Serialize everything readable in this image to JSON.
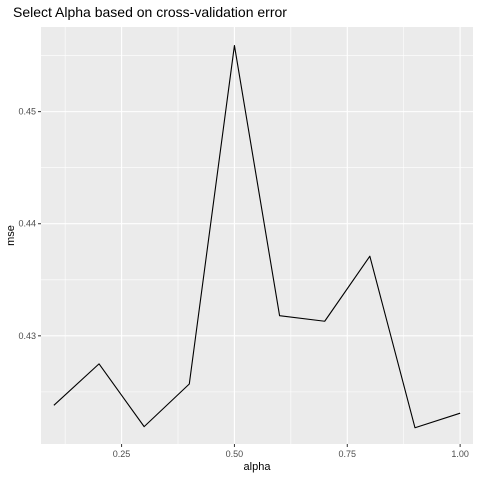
{
  "chart_data": {
    "type": "line",
    "title": "Select Alpha based on cross-validation error",
    "xlabel": "alpha",
    "ylabel": "mse",
    "xlim": [
      0.0715,
      1.0285
    ],
    "ylim": [
      0.42035,
      0.45755
    ],
    "x_ticks": [
      0.25,
      0.5,
      0.75,
      1.0
    ],
    "x_tick_labels": [
      "0.25",
      "0.50",
      "0.75",
      "1.00"
    ],
    "y_ticks": [
      0.43,
      0.44,
      0.45
    ],
    "y_tick_labels": [
      "0.43",
      "0.44",
      "0.45"
    ],
    "grid": true,
    "legend": "none",
    "background_color": "#ebebeb",
    "grid_color": "#ffffff",
    "line_color": "#000000",
    "series": [
      {
        "x": [
          0.1,
          0.2,
          0.3,
          0.4,
          0.5,
          0.6,
          0.7,
          0.8,
          0.9,
          1.0
        ],
        "values": [
          0.4238,
          0.4275,
          0.4219,
          0.4257,
          0.4559,
          0.4318,
          0.4313,
          0.4371,
          0.4218,
          0.4231
        ]
      }
    ]
  }
}
